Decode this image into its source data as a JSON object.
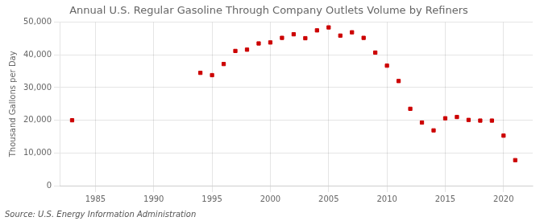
{
  "chart_data": {
    "type": "scatter",
    "title": "Annual U.S. Regular Gasoline Through Company Outlets Volume by Refiners",
    "y_label": "Thousand Gallons per Day",
    "annotations": [
      "Source: U.S. Energy Information Administration"
    ],
    "x": [
      1983,
      1994,
      1995,
      1996,
      1997,
      1998,
      1999,
      2000,
      2001,
      2002,
      2003,
      2004,
      2005,
      2006,
      2007,
      2008,
      2009,
      2010,
      2011,
      2012,
      2013,
      2014,
      2015,
      2016,
      2017,
      2018,
      2019,
      2020,
      2021
    ],
    "values": [
      20000,
      34500,
      33800,
      37200,
      41200,
      41600,
      43500,
      43800,
      45200,
      46300,
      45100,
      47500,
      48400,
      45900,
      46900,
      45200,
      40700,
      36700,
      32000,
      23500,
      19300,
      16900,
      20600,
      21000,
      20100,
      19900,
      19900,
      15300,
      7800
    ],
    "color": "#CC0000",
    "marker": "square",
    "xlim": [
      1982,
      2022.5
    ],
    "xticks": [
      1985,
      1990,
      1995,
      2000,
      2005,
      2010,
      2015,
      2020
    ],
    "ylim": [
      0,
      50000
    ],
    "yticks": [
      0,
      {
        "value": 10000,
        "label": "10,000"
      },
      {
        "value": 20000,
        "label": "20,000"
      },
      {
        "value": 30000,
        "label": "30,000"
      },
      {
        "value": 40000,
        "label": "40,000"
      },
      {
        "value": 50000,
        "label": "50,000"
      }
    ],
    "grid": true
  }
}
